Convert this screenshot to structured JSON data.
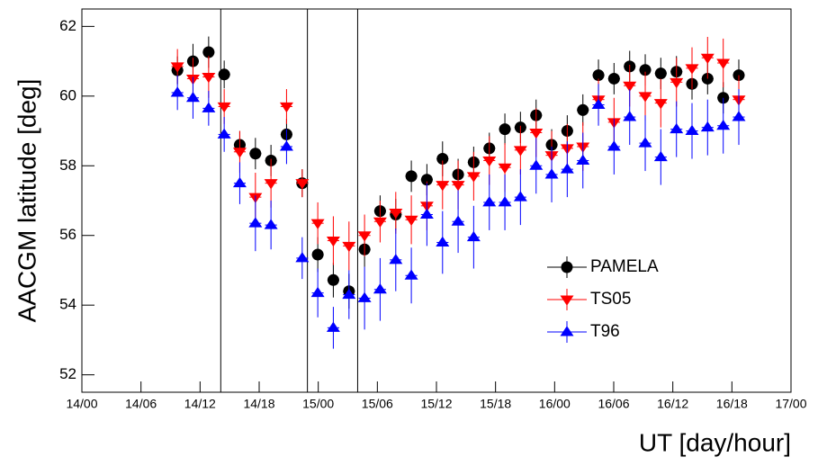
{
  "chart_data": {
    "type": "errorbar-scatter",
    "x_label": "UT [day/hour]",
    "y_label": "AACGM latitude [deg]",
    "xlim": [
      0,
      72
    ],
    "ylim": [
      51.5,
      62.5
    ],
    "xticks": [
      {
        "value": 0,
        "label": "14/00"
      },
      {
        "value": 6,
        "label": "14/06"
      },
      {
        "value": 12,
        "label": "14/12"
      },
      {
        "value": 18,
        "label": "14/18"
      },
      {
        "value": 24,
        "label": "15/00"
      },
      {
        "value": 30,
        "label": "15/06"
      },
      {
        "value": 36,
        "label": "15/12"
      },
      {
        "value": 42,
        "label": "15/18"
      },
      {
        "value": 48,
        "label": "16/00"
      },
      {
        "value": 54,
        "label": "16/06"
      },
      {
        "value": 60,
        "label": "16/12"
      },
      {
        "value": 66,
        "label": "16/18"
      },
      {
        "value": 72,
        "label": "17/00"
      }
    ],
    "yticks": [
      52,
      54,
      56,
      58,
      60,
      62
    ],
    "vlines": [
      14.1,
      22.9,
      28.0
    ],
    "xerr": 0.6,
    "legend": "lower-right",
    "x": [
      9.7,
      11.28,
      12.87,
      14.45,
      16.03,
      17.62,
      19.2,
      20.78,
      22.37,
      23.95,
      25.53,
      27.12,
      28.7,
      30.28,
      31.87,
      33.45,
      35.03,
      36.62,
      38.2,
      39.78,
      41.37,
      42.95,
      44.53,
      46.12,
      47.7,
      49.28,
      50.87,
      52.45,
      54.03,
      55.62,
      57.2,
      58.78,
      60.37,
      61.95,
      63.53,
      65.12,
      66.7
    ],
    "series": [
      {
        "name": "PAMELA",
        "marker": "circle",
        "color": "#000000",
        "values": [
          60.74,
          61.0,
          61.26,
          60.62,
          58.6,
          58.35,
          58.15,
          58.9,
          57.5,
          55.45,
          54.72,
          54.4,
          55.6,
          56.7,
          56.6,
          57.7,
          57.6,
          58.2,
          57.75,
          58.1,
          58.5,
          59.05,
          59.1,
          59.45,
          58.6,
          59.0,
          59.6,
          60.6,
          60.5,
          60.85,
          60.75,
          60.65,
          60.7,
          60.35,
          60.5,
          59.95,
          60.6
        ],
        "errors": [
          0.4,
          0.5,
          0.45,
          0.4,
          0.4,
          0.45,
          0.45,
          0.45,
          0.4,
          0.5,
          0.5,
          0.5,
          0.5,
          0.45,
          0.45,
          0.45,
          0.45,
          0.5,
          0.45,
          0.45,
          0.45,
          0.45,
          0.45,
          0.45,
          0.45,
          0.45,
          0.45,
          0.45,
          0.45,
          0.45,
          0.45,
          0.45,
          0.45,
          0.45,
          0.45,
          0.45,
          0.45
        ]
      },
      {
        "name": "TS05",
        "marker": "triangle-down",
        "color": "#ff0000",
        "values": [
          60.85,
          60.5,
          60.55,
          59.7,
          58.4,
          57.1,
          57.5,
          59.7,
          57.5,
          56.35,
          55.85,
          55.7,
          56.0,
          56.4,
          56.65,
          56.45,
          56.85,
          57.45,
          57.45,
          57.7,
          58.15,
          57.95,
          58.45,
          58.95,
          58.3,
          58.5,
          58.55,
          59.9,
          59.25,
          60.3,
          60.0,
          59.8,
          60.4,
          60.8,
          61.1,
          60.95,
          59.9
        ],
        "errors": [
          0.5,
          0.6,
          0.6,
          0.5,
          0.6,
          0.7,
          0.7,
          0.5,
          0.4,
          0.6,
          0.7,
          0.7,
          0.6,
          0.6,
          0.6,
          0.7,
          0.7,
          0.7,
          0.7,
          0.7,
          0.7,
          0.7,
          0.7,
          0.7,
          0.7,
          0.7,
          0.7,
          0.6,
          0.7,
          0.6,
          0.7,
          0.7,
          0.7,
          0.6,
          0.6,
          0.7,
          0.7
        ]
      },
      {
        "name": "T96",
        "marker": "triangle-up",
        "color": "#0000ff",
        "values": [
          60.1,
          59.95,
          59.65,
          58.9,
          57.5,
          56.35,
          56.3,
          58.55,
          55.35,
          54.35,
          53.35,
          54.3,
          54.2,
          54.45,
          55.3,
          54.85,
          56.6,
          55.8,
          56.4,
          55.95,
          56.95,
          56.95,
          57.1,
          58.0,
          57.75,
          57.9,
          58.15,
          59.75,
          58.55,
          59.4,
          58.65,
          58.25,
          59.05,
          59.0,
          59.1,
          59.15,
          59.4
        ],
        "errors": [
          0.5,
          0.6,
          0.5,
          0.5,
          0.6,
          0.8,
          0.7,
          0.5,
          0.6,
          0.7,
          0.6,
          0.7,
          0.9,
          0.9,
          0.9,
          0.8,
          0.9,
          0.9,
          0.9,
          0.9,
          0.8,
          0.8,
          0.8,
          0.8,
          0.8,
          0.8,
          0.8,
          0.6,
          0.8,
          0.8,
          0.8,
          0.8,
          0.8,
          0.8,
          0.8,
          0.8,
          0.8
        ]
      }
    ]
  }
}
